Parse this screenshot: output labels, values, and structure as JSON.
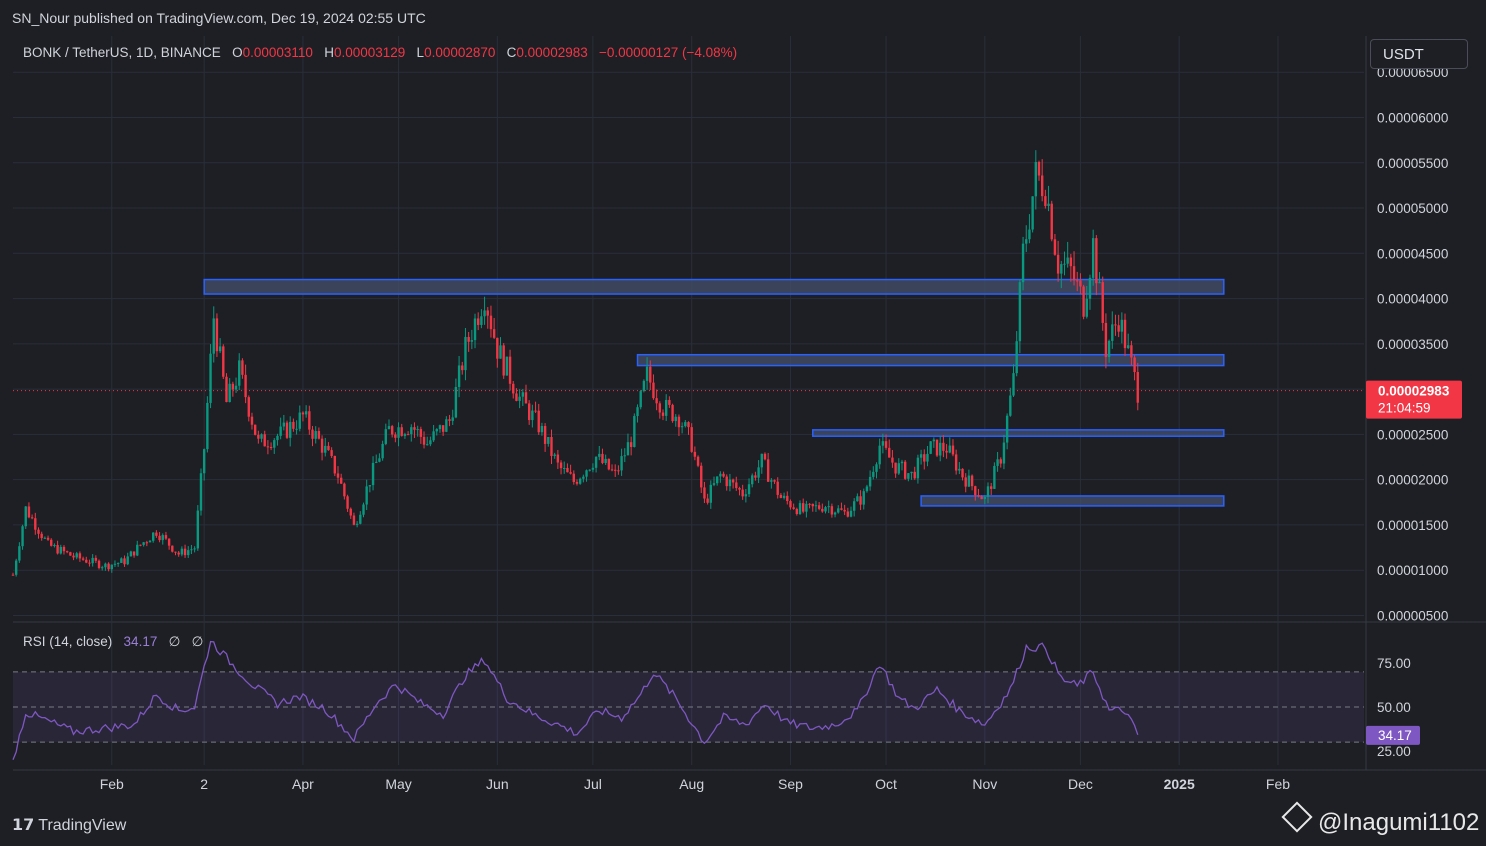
{
  "header": {
    "published": "SN_Nour published on TradingView.com, Dec 19, 2024 02:55 UTC"
  },
  "symbol": {
    "label": "BONK / TetherUS, 1D, BINANCE",
    "o_label": "O",
    "o_value": "0.00003110",
    "h_label": "H",
    "h_value": "0.00003129",
    "l_label": "L",
    "l_value": "0.00002870",
    "c_label": "C",
    "c_value": "0.00002983",
    "change": "−0.00000127 (−4.08%)"
  },
  "unit_button": "USDT",
  "price_badge": {
    "price": "0.00002983",
    "countdown": "21:04:59",
    "color": "#f23645"
  },
  "rsi": {
    "label": "RSI (14, close)",
    "value": "34.17",
    "extra1": "∅",
    "extra2": "∅",
    "badge": "34.17",
    "color": "#7e57c2"
  },
  "footer": {
    "brand": "TradingView",
    "brand_icon": "tradingview-logo",
    "watermark": "@Inagumi1102",
    "watermark_icon": "binance-diamond-icon"
  },
  "colors": {
    "up": "#089981",
    "down": "#f23645",
    "zone_fill": "#3f4a63",
    "zone_border": "#2962ff",
    "rsi": "#7e57c2"
  },
  "chart_data": {
    "type": "candlestick",
    "y_tick_labels": [
      "0.00006500",
      "0.00006000",
      "0.00005500",
      "0.00005000",
      "0.00004500",
      "0.00004000",
      "0.00003500",
      "0.00003000",
      "0.00002500",
      "0.00002000",
      "0.00001500",
      "0.00001000",
      "0.00000500"
    ],
    "x_tick_labels": [
      "Feb",
      "2",
      "Apr",
      "May",
      "Jun",
      "Jul",
      "Aug",
      "Sep",
      "Oct",
      "Nov",
      "Dec",
      "2025",
      "Feb"
    ],
    "ylim": [
      4.5e-06,
      6.9e-05
    ],
    "current_price": 2.983e-05,
    "zones": [
      {
        "from": "2024-03-01",
        "to": "2025-01-15",
        "low": 4.05e-05,
        "high": 4.21e-05
      },
      {
        "from": "2024-07-15",
        "to": "2025-01-15",
        "low": 3.26e-05,
        "high": 3.38e-05
      },
      {
        "from": "2024-09-08",
        "to": "2025-01-15",
        "low": 2.48e-05,
        "high": 2.55e-05
      },
      {
        "from": "2024-10-12",
        "to": "2025-01-15",
        "low": 1.71e-05,
        "high": 1.82e-05
      }
    ],
    "price_path": [
      [
        "2024-01-01",
        9.5e-06
      ],
      [
        "2024-01-05",
        1.68e-05
      ],
      [
        "2024-01-12",
        1.28e-05
      ],
      [
        "2024-01-20",
        1.15e-05
      ],
      [
        "2024-01-30",
        1.05e-05
      ],
      [
        "2024-02-05",
        1.1e-05
      ],
      [
        "2024-02-10",
        1.28e-05
      ],
      [
        "2024-02-15",
        1.43e-05
      ],
      [
        "2024-02-22",
        1.18e-05
      ],
      [
        "2024-02-27",
        1.25e-05
      ],
      [
        "2024-03-01",
        2.35e-05
      ],
      [
        "2024-03-04",
        3.8e-05
      ],
      [
        "2024-03-08",
        2.85e-05
      ],
      [
        "2024-03-12",
        3.2e-05
      ],
      [
        "2024-03-18",
        2.4e-05
      ],
      [
        "2024-03-25",
        2.5e-05
      ],
      [
        "2024-04-01",
        2.7e-05
      ],
      [
        "2024-04-08",
        2.32e-05
      ],
      [
        "2024-04-12",
        2.05e-05
      ],
      [
        "2024-04-17",
        1.48e-05
      ],
      [
        "2024-04-22",
        2e-05
      ],
      [
        "2024-04-28",
        2.55e-05
      ],
      [
        "2024-05-05",
        2.6e-05
      ],
      [
        "2024-05-10",
        2.4e-05
      ],
      [
        "2024-05-17",
        2.65e-05
      ],
      [
        "2024-05-22",
        3.45e-05
      ],
      [
        "2024-05-28",
        4.05e-05
      ],
      [
        "2024-06-01",
        3.45e-05
      ],
      [
        "2024-06-08",
        2.9e-05
      ],
      [
        "2024-06-14",
        2.6e-05
      ],
      [
        "2024-06-20",
        2.15e-05
      ],
      [
        "2024-06-25",
        1.98e-05
      ],
      [
        "2024-07-02",
        2.25e-05
      ],
      [
        "2024-07-08",
        2.05e-05
      ],
      [
        "2024-07-13",
        2.45e-05
      ],
      [
        "2024-07-18",
        3.15e-05
      ],
      [
        "2024-07-23",
        2.8e-05
      ],
      [
        "2024-07-28",
        2.7e-05
      ],
      [
        "2024-08-01",
        2.4e-05
      ],
      [
        "2024-08-05",
        1.75e-05
      ],
      [
        "2024-08-10",
        2.05e-05
      ],
      [
        "2024-08-17",
        1.85e-05
      ],
      [
        "2024-08-23",
        2.2e-05
      ],
      [
        "2024-08-29",
        1.8e-05
      ],
      [
        "2024-09-05",
        1.65e-05
      ],
      [
        "2024-09-12",
        1.72e-05
      ],
      [
        "2024-09-18",
        1.63e-05
      ],
      [
        "2024-09-24",
        1.82e-05
      ],
      [
        "2024-09-29",
        2.38e-05
      ],
      [
        "2024-10-04",
        2.15e-05
      ],
      [
        "2024-10-09",
        2.05e-05
      ],
      [
        "2024-10-15",
        2.35e-05
      ],
      [
        "2024-10-20",
        2.35e-05
      ],
      [
        "2024-10-25",
        2.05e-05
      ],
      [
        "2024-11-01",
        1.78e-05
      ],
      [
        "2024-11-06",
        2.25e-05
      ],
      [
        "2024-11-10",
        3.1e-05
      ],
      [
        "2024-11-13",
        4.5e-05
      ],
      [
        "2024-11-17",
        5.35e-05
      ],
      [
        "2024-11-20",
        5.25e-05
      ],
      [
        "2024-11-24",
        4.4e-05
      ],
      [
        "2024-11-28",
        4.3e-05
      ],
      [
        "2024-12-02",
        3.95e-05
      ],
      [
        "2024-12-05",
        4.6e-05
      ],
      [
        "2024-12-09",
        3.45e-05
      ],
      [
        "2024-12-13",
        3.8e-05
      ],
      [
        "2024-12-16",
        3.4e-05
      ],
      [
        "2024-12-19",
        2.98e-05
      ]
    ],
    "rsi_y_tick_labels": [
      "75.00",
      "50.00",
      "25.00"
    ],
    "rsi_levels": {
      "upper": 70,
      "middle": 50,
      "lower": 30
    },
    "rsi_ylim": [
      17,
      95
    ],
    "rsi_path": [
      [
        "2024-01-01",
        20
      ],
      [
        "2024-01-05",
        47
      ],
      [
        "2024-01-12",
        42
      ],
      [
        "2024-01-20",
        36
      ],
      [
        "2024-01-30",
        38
      ],
      [
        "2024-02-08",
        40
      ],
      [
        "2024-02-15",
        57
      ],
      [
        "2024-02-22",
        48
      ],
      [
        "2024-02-27",
        50
      ],
      [
        "2024-03-03",
        88
      ],
      [
        "2024-03-10",
        74
      ],
      [
        "2024-03-16",
        63
      ],
      [
        "2024-03-24",
        52
      ],
      [
        "2024-03-31",
        56
      ],
      [
        "2024-04-08",
        49
      ],
      [
        "2024-04-17",
        32
      ],
      [
        "2024-04-24",
        52
      ],
      [
        "2024-04-30",
        63
      ],
      [
        "2024-05-08",
        52
      ],
      [
        "2024-05-15",
        46
      ],
      [
        "2024-05-22",
        68
      ],
      [
        "2024-05-28",
        77
      ],
      [
        "2024-06-04",
        55
      ],
      [
        "2024-06-12",
        46
      ],
      [
        "2024-06-20",
        40
      ],
      [
        "2024-06-26",
        35
      ],
      [
        "2024-07-03",
        48
      ],
      [
        "2024-07-10",
        44
      ],
      [
        "2024-07-16",
        57
      ],
      [
        "2024-07-20",
        70
      ],
      [
        "2024-07-27",
        55
      ],
      [
        "2024-08-05",
        30
      ],
      [
        "2024-08-11",
        44
      ],
      [
        "2024-08-18",
        40
      ],
      [
        "2024-08-24",
        52
      ],
      [
        "2024-08-31",
        41
      ],
      [
        "2024-09-08",
        38
      ],
      [
        "2024-09-15",
        40
      ],
      [
        "2024-09-22",
        48
      ],
      [
        "2024-09-29",
        75
      ],
      [
        "2024-10-05",
        55
      ],
      [
        "2024-10-10",
        49
      ],
      [
        "2024-10-17",
        60
      ],
      [
        "2024-10-24",
        48
      ],
      [
        "2024-11-01",
        40
      ],
      [
        "2024-11-09",
        60
      ],
      [
        "2024-11-14",
        84
      ],
      [
        "2024-11-20",
        84
      ],
      [
        "2024-11-25",
        66
      ],
      [
        "2024-11-30",
        62
      ],
      [
        "2024-12-05",
        70
      ],
      [
        "2024-12-10",
        48
      ],
      [
        "2024-12-15",
        48
      ],
      [
        "2024-12-19",
        34.17
      ]
    ]
  }
}
